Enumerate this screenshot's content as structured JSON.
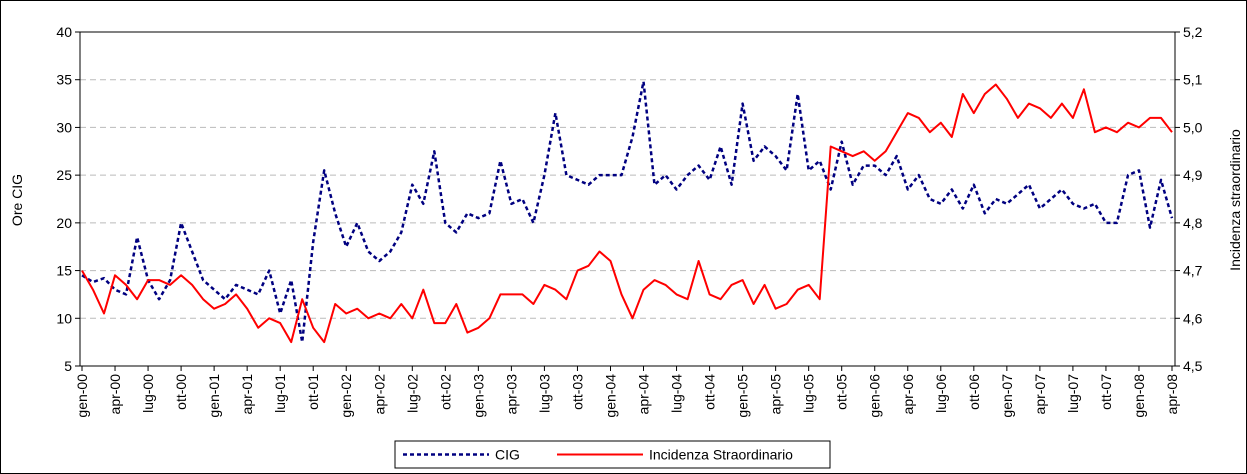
{
  "chart_data": {
    "type": "line",
    "y_label": "Ore CIG",
    "y2_label": "Incidenza straordinario",
    "categories": [
      "gen-00",
      null,
      null,
      "apr-00",
      null,
      null,
      "lug-00",
      null,
      null,
      "ott-00",
      null,
      null,
      "gen-01",
      null,
      null,
      "apr-01",
      null,
      null,
      "lug-01",
      null,
      null,
      "ott-01",
      null,
      null,
      "gen-02",
      null,
      null,
      "apr-02",
      null,
      null,
      "lug-02",
      null,
      null,
      "ott-02",
      null,
      null,
      "gen-03",
      null,
      null,
      "apr-03",
      null,
      null,
      "lug-03",
      null,
      null,
      "ott-03",
      null,
      null,
      "gen-04",
      null,
      null,
      "apr-04",
      null,
      null,
      "lug-04",
      null,
      null,
      "ott-04",
      null,
      null,
      "gen-05",
      null,
      null,
      "apr-05",
      null,
      null,
      "lug-05",
      null,
      null,
      "ott-05",
      null,
      null,
      "gen-06",
      null,
      null,
      "apr-06",
      null,
      null,
      "lug-06",
      null,
      null,
      "ott-06",
      null,
      null,
      "gen-07",
      null,
      null,
      "apr-07",
      null,
      null,
      "lug-07",
      null,
      null,
      "ott-07",
      null,
      null,
      "gen-08",
      null,
      null,
      "apr-08"
    ],
    "series": [
      {
        "name": "CIG",
        "color": "#000080",
        "dashed": true,
        "values": [
          14.5,
          13.8,
          14.2,
          13,
          12.5,
          18.5,
          14,
          12,
          14,
          20,
          17,
          14,
          13,
          12,
          13.5,
          13,
          12.5,
          15,
          10.5,
          14,
          7.5,
          18,
          25.5,
          21,
          17.5,
          20,
          17,
          16,
          17,
          19,
          24,
          22,
          27.5,
          20,
          19,
          21,
          20.5,
          21,
          26.5,
          22,
          22.5,
          20,
          25,
          31.5,
          25,
          24.5,
          24,
          25,
          25,
          25,
          29,
          34.8,
          24,
          25,
          23.5,
          25,
          26,
          24.5,
          28,
          24,
          32.5,
          26.5,
          28,
          27,
          25.5,
          33.5,
          25.5,
          26.5,
          23.5,
          28.5,
          24,
          26,
          26,
          25,
          27,
          23.5,
          25,
          22.5,
          22,
          23.5,
          21.5,
          24,
          21,
          22.5,
          22,
          23,
          24,
          21.5,
          22.5,
          23.5,
          22,
          21.5,
          22,
          20,
          20,
          25,
          25.5,
          19.5,
          24.5,
          20.5
        ]
      },
      {
        "name": "Incidenza Straordinario",
        "color": "#ff0000",
        "axis": "y2",
        "dashed": false,
        "values": [
          4.7,
          4.66,
          4.61,
          4.69,
          4.67,
          4.64,
          4.68,
          4.68,
          4.67,
          4.69,
          4.67,
          4.64,
          4.62,
          4.63,
          4.65,
          4.62,
          4.58,
          4.6,
          4.59,
          4.55,
          4.64,
          4.58,
          4.55,
          4.63,
          4.61,
          4.62,
          4.6,
          4.61,
          4.6,
          4.63,
          4.6,
          4.66,
          4.59,
          4.59,
          4.63,
          4.57,
          4.58,
          4.6,
          4.65,
          4.65,
          4.65,
          4.63,
          4.67,
          4.66,
          4.64,
          4.7,
          4.71,
          4.74,
          4.72,
          4.65,
          4.6,
          4.66,
          4.68,
          4.67,
          4.65,
          4.64,
          4.72,
          4.65,
          4.64,
          4.67,
          4.68,
          4.63,
          4.67,
          4.62,
          4.63,
          4.66,
          4.67,
          4.64,
          4.96,
          4.95,
          4.94,
          4.95,
          4.93,
          4.95,
          4.99,
          5.03,
          5.02,
          4.99,
          5.01,
          4.98,
          5.07,
          5.03,
          5.07,
          5.09,
          5.06,
          5.02,
          5.05,
          5.04,
          5.02,
          5.05,
          5.02,
          5.08,
          4.99,
          5.0,
          4.99,
          5.01,
          5.0,
          5.02,
          5.02,
          4.99
        ]
      }
    ],
    "ylim": [
      5,
      40
    ],
    "yticks": [
      5,
      10,
      15,
      20,
      25,
      30,
      35,
      40
    ],
    "y2lim": [
      4.5,
      5.2
    ],
    "y2ticks": [
      {
        "value": 4.5,
        "label": "4,5"
      },
      {
        "value": 4.6,
        "label": "4,6"
      },
      {
        "value": 4.7,
        "label": "4,7"
      },
      {
        "value": 4.8,
        "label": "4,8"
      },
      {
        "value": 4.9,
        "label": "4,9"
      },
      {
        "value": 5.0,
        "label": "5,0"
      },
      {
        "value": 5.1,
        "label": "5,1"
      },
      {
        "value": 5.2,
        "label": "5,2"
      }
    ],
    "grid": true,
    "legend": "bottom"
  }
}
